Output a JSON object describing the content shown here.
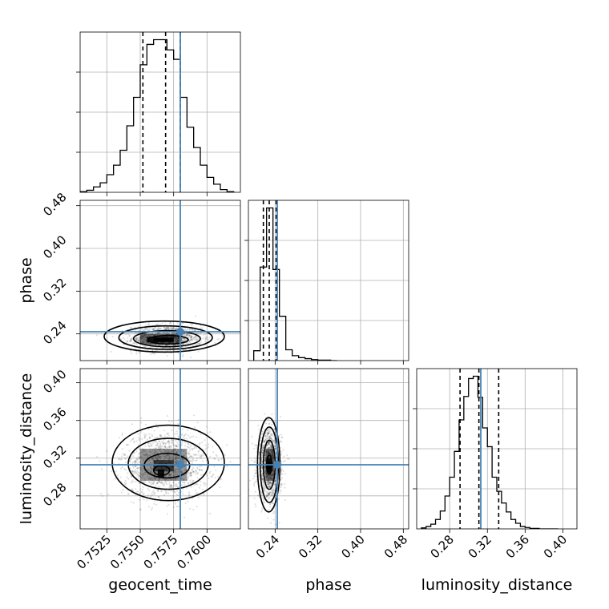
{
  "chart_data": {
    "type": "corner",
    "parameters": [
      "geocent_time",
      "phase",
      "luminosity_distance"
    ],
    "truths": [
      0.758,
      0.244,
      0.313
    ],
    "colors": {
      "truth": "#4682b4",
      "hist": "#000000",
      "grid": "#b0b0b0",
      "sample": "#000000"
    },
    "grid": true,
    "axes": {
      "geocent_time": {
        "range": [
          0.7505,
          0.7625
        ],
        "ticks": [
          0.7525,
          0.755,
          0.7575,
          0.76
        ],
        "tick_labels": [
          "0.7525",
          "0.7550",
          "0.7575",
          "0.7600"
        ]
      },
      "phase": {
        "range": [
          0.19,
          0.49
        ],
        "ticks": [
          0.24,
          0.32,
          0.4,
          0.48
        ],
        "tick_labels": [
          "0.24",
          "0.32",
          "0.40",
          "0.48"
        ]
      },
      "luminosity_distance": {
        "range": [
          0.245,
          0.415
        ],
        "ticks": [
          0.28,
          0.32,
          0.36,
          0.4
        ],
        "tick_labels": [
          "0.28",
          "0.32",
          "0.36",
          "0.40"
        ]
      }
    },
    "histograms": [
      {
        "parameter": "geocent_time",
        "bin_edges": [
          0.7505,
          0.751,
          0.7515,
          0.752,
          0.7525,
          0.753,
          0.7535,
          0.754,
          0.7545,
          0.755,
          0.7555,
          0.756,
          0.7565,
          0.757,
          0.7575,
          0.758,
          0.7585,
          0.759,
          0.7595,
          0.76,
          0.7605,
          0.761,
          0.7615,
          0.762
        ],
        "counts": [
          1,
          3,
          8,
          14,
          26,
          40,
          62,
          98,
          140,
          188,
          218,
          225,
          225,
          210,
          196,
          140,
          96,
          66,
          40,
          22,
          12,
          4,
          1
        ],
        "quantiles": [
          0.7552,
          0.7569,
          0.758
        ]
      },
      {
        "parameter": "phase",
        "bin_edges": [
          0.2,
          0.212,
          0.224,
          0.236,
          0.248,
          0.26,
          0.272,
          0.284,
          0.296,
          0.308,
          0.32,
          0.332,
          0.344,
          0.356
        ],
        "counts": [
          20,
          190,
          310,
          185,
          90,
          22,
          10,
          6,
          4,
          2,
          1,
          1,
          0
        ],
        "quantiles": [
          0.218,
          0.229,
          0.242
        ]
      },
      {
        "parameter": "luminosity_distance",
        "bin_edges": [
          0.25,
          0.255,
          0.26,
          0.265,
          0.27,
          0.275,
          0.28,
          0.285,
          0.29,
          0.295,
          0.3,
          0.305,
          0.31,
          0.315,
          0.32,
          0.325,
          0.33,
          0.335,
          0.34,
          0.345,
          0.35,
          0.355,
          0.36,
          0.365,
          0.37,
          0.375,
          0.38,
          0.385,
          0.39,
          0.395
        ],
        "counts": [
          2,
          5,
          10,
          20,
          38,
          70,
          110,
          165,
          232,
          282,
          320,
          325,
          280,
          215,
          175,
          110,
          80,
          55,
          36,
          20,
          12,
          5,
          3,
          1,
          1,
          0,
          0,
          0,
          0
        ],
        "quantiles": [
          0.291,
          0.311,
          0.332
        ]
      }
    ],
    "pairs": [
      {
        "x": "geocent_time",
        "y": "phase",
        "center": [
          0.757,
          0.232
        ],
        "spread": [
          0.0013,
          0.012
        ],
        "density_cells": [
          {
            "x": [
              0.7555,
              0.7575
            ],
            "y": [
              0.224,
              0.234
            ],
            "level": 0.85
          },
          {
            "x": [
              0.756,
              0.7575
            ],
            "y": [
              0.226,
              0.232
            ],
            "level": 1.0
          },
          {
            "x": [
              0.755,
              0.758
            ],
            "y": [
              0.22,
              0.24
            ],
            "level": 0.45
          }
        ],
        "contours": [
          {
            "cx": 0.7571,
            "cy": 0.229,
            "rx": 0.0015,
            "ry": 0.008
          },
          {
            "cx": 0.757,
            "cy": 0.231,
            "rx": 0.0025,
            "ry": 0.015
          },
          {
            "cx": 0.7569,
            "cy": 0.233,
            "rx": 0.0035,
            "ry": 0.022
          },
          {
            "cx": 0.7568,
            "cy": 0.235,
            "rx": 0.0045,
            "ry": 0.029
          }
        ]
      },
      {
        "x": "geocent_time",
        "y": "luminosity_distance",
        "center": [
          0.7569,
          0.313
        ],
        "spread": [
          0.0016,
          0.018
        ],
        "density_cells": [
          {
            "x": [
              0.756,
              0.7575
            ],
            "y": [
              0.306,
              0.318
            ],
            "level": 0.55
          },
          {
            "x": [
              0.7563,
              0.7568
            ],
            "y": [
              0.3,
              0.308
            ],
            "level": 1.0
          },
          {
            "x": [
              0.755,
              0.7585
            ],
            "y": [
              0.296,
              0.33
            ],
            "level": 0.25
          }
        ],
        "contours": [
          {
            "cx": 0.7566,
            "cy": 0.307,
            "rx": 0.0006,
            "ry": 0.005
          },
          {
            "cx": 0.757,
            "cy": 0.312,
            "rx": 0.0017,
            "ry": 0.013
          },
          {
            "cx": 0.7571,
            "cy": 0.314,
            "rx": 0.003,
            "ry": 0.027
          },
          {
            "cx": 0.7571,
            "cy": 0.315,
            "rx": 0.0042,
            "ry": 0.04
          }
        ]
      },
      {
        "x": "phase",
        "y": "luminosity_distance",
        "center": [
          0.23,
          0.313
        ],
        "spread": [
          0.011,
          0.018
        ],
        "density_cells": [
          {
            "x": [
              0.222,
              0.238
            ],
            "y": [
              0.296,
              0.33
            ],
            "level": 0.4
          },
          {
            "x": [
              0.225,
              0.233
            ],
            "y": [
              0.308,
              0.32
            ],
            "level": 0.8
          },
          {
            "x": [
              0.226,
              0.232
            ],
            "y": [
              0.304,
              0.316
            ],
            "level": 1.0
          }
        ],
        "contours": [
          {
            "cx": 0.229,
            "cy": 0.313,
            "rx": 0.005,
            "ry": 0.01
          },
          {
            "cx": 0.229,
            "cy": 0.313,
            "rx": 0.011,
            "ry": 0.026
          },
          {
            "cx": 0.229,
            "cy": 0.313,
            "rx": 0.017,
            "ry": 0.04
          },
          {
            "cx": 0.228,
            "cy": 0.313,
            "rx": 0.021,
            "ry": 0.05
          }
        ]
      }
    ]
  }
}
